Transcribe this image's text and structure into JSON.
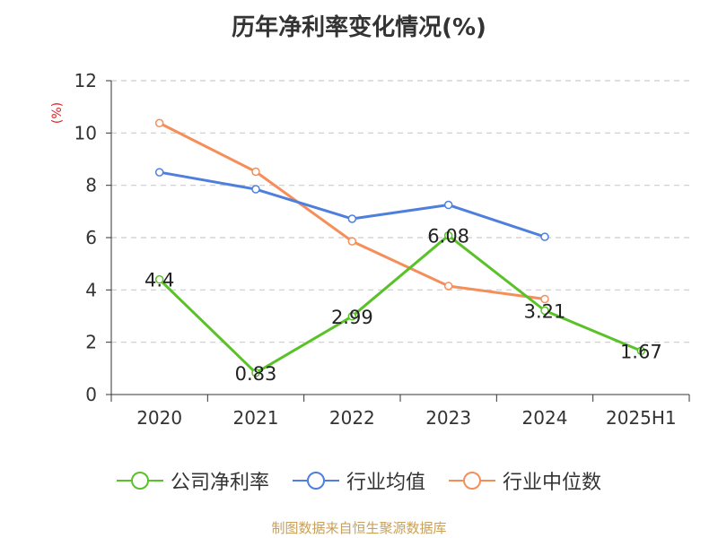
{
  "title": "历年净利率变化情况(%)",
  "source": "制图数据来自恒生聚源数据库",
  "chart_data": {
    "type": "line",
    "categories": [
      "2020",
      "2021",
      "2022",
      "2023",
      "2024",
      "2025H1"
    ],
    "ylabel": "(%)",
    "ylim": [
      0,
      12
    ],
    "yticks": [
      0,
      2,
      4,
      6,
      8,
      10,
      12
    ],
    "grid": true,
    "legend_position": "bottom",
    "series": [
      {
        "name": "公司净利率",
        "color": "#5ac229",
        "values": [
          4.4,
          0.83,
          2.99,
          6.08,
          3.21,
          1.67
        ],
        "labels": [
          "4.4",
          "0.83",
          "2.99",
          "6.08",
          "3.21",
          "1.67"
        ]
      },
      {
        "name": "行业均值",
        "color": "#4e7fdc",
        "values": [
          8.5,
          7.85,
          6.72,
          7.25,
          6.03,
          null
        ]
      },
      {
        "name": "行业中位数",
        "color": "#f58f5a",
        "values": [
          10.38,
          8.52,
          5.86,
          4.15,
          3.65,
          null
        ]
      }
    ]
  }
}
